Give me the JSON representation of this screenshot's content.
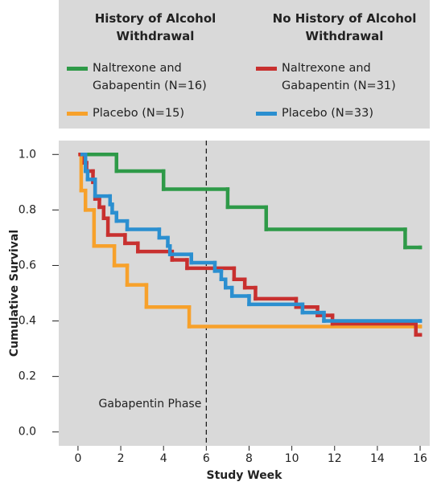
{
  "chart_data": {
    "type": "step",
    "xlabel": "Study Week",
    "ylabel": "Cumulative Survival",
    "xlim": [
      -0.9,
      16.45
    ],
    "ylim": [
      -0.05,
      1.05
    ],
    "xticks": [
      0,
      2,
      4,
      6,
      8,
      10,
      12,
      14,
      16
    ],
    "yticks": [
      {
        "value": 0,
        "label": "0.0"
      },
      0.2,
      0.4,
      0.6,
      0.8,
      {
        "value": 1,
        "label": "1.0"
      }
    ],
    "vline": 6,
    "annotation": "Gabapentin Phase",
    "legend_groups": [
      "History of Alcohol Withdrawal",
      "No History of Alcohol Withdrawal"
    ],
    "series": [
      {
        "name": "Naltrexone and Gabapentin (N=16)",
        "group": 0,
        "color": "#2e9a48",
        "x": [
          0.15,
          1.8,
          4.0,
          7.0,
          8.8,
          15.3,
          16
        ],
        "values": [
          1.0,
          0.94,
          0.875,
          0.81,
          0.73,
          0.665,
          0.665
        ]
      },
      {
        "name": "Placebo (N=15)",
        "group": 0,
        "color": "#f7a12b",
        "x": [
          0.1,
          0.15,
          0.35,
          0.75,
          1.7,
          2.3,
          3.2,
          5.2,
          16
        ],
        "values": [
          1.0,
          0.87,
          0.8,
          0.67,
          0.6,
          0.53,
          0.45,
          0.38,
          0.38
        ]
      },
      {
        "name": "Naltrexone and Gabapentin (N=31)",
        "group": 1,
        "color": "#c8302f",
        "x": [
          0.1,
          0.3,
          0.4,
          0.7,
          0.8,
          1.0,
          1.2,
          1.4,
          2.2,
          2.8,
          4.4,
          5.1,
          7.3,
          7.8,
          8.3,
          10.2,
          11.2,
          11.9,
          15.8,
          16
        ],
        "values": [
          1.0,
          0.97,
          0.94,
          0.9,
          0.84,
          0.81,
          0.77,
          0.71,
          0.68,
          0.65,
          0.62,
          0.59,
          0.55,
          0.52,
          0.48,
          0.45,
          0.42,
          0.39,
          0.35,
          0.35
        ]
      },
      {
        "name": "Placebo (N=33)",
        "group": 1,
        "color": "#2b8fd0",
        "x": [
          0.2,
          0.35,
          0.45,
          0.8,
          1.5,
          1.6,
          1.8,
          2.3,
          3.8,
          4.2,
          4.3,
          5.3,
          6.4,
          6.7,
          6.9,
          7.2,
          8.0,
          10.5,
          11.5,
          16
        ],
        "values": [
          1.0,
          0.94,
          0.91,
          0.85,
          0.82,
          0.79,
          0.76,
          0.73,
          0.7,
          0.67,
          0.64,
          0.61,
          0.58,
          0.55,
          0.52,
          0.49,
          0.46,
          0.43,
          0.4,
          0.4
        ]
      }
    ]
  }
}
